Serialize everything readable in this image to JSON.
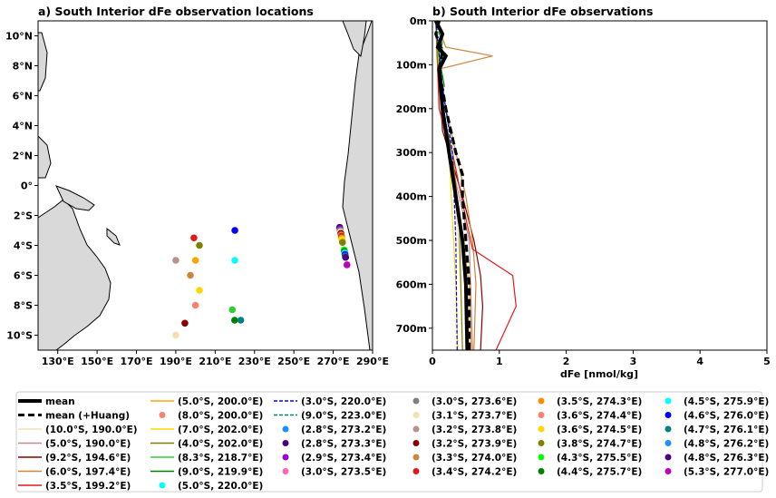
{
  "chart_data": [
    {
      "type": "scatter",
      "title": "a) South Interior dFe observation locations",
      "x_tick_labels": [
        "130°E",
        "150°E",
        "170°E",
        "190°E",
        "210°E",
        "230°E",
        "250°E",
        "270°E",
        "290°E"
      ],
      "x_tick_values": [
        130,
        150,
        170,
        190,
        210,
        230,
        250,
        270,
        290
      ],
      "y_tick_labels": [
        "10°N",
        "8°N",
        "6°N",
        "4°N",
        "2°N",
        "0°",
        "2°S",
        "4°S",
        "6°S",
        "8°S",
        "10°S"
      ],
      "y_tick_values": [
        10,
        8,
        6,
        4,
        2,
        0,
        -2,
        -4,
        -6,
        -8,
        -10
      ],
      "xlim": [
        120,
        290
      ],
      "ylim": [
        -11,
        11
      ],
      "points": [
        {
          "lon": 190.0,
          "lat": -10.0,
          "color": "#f5deb3"
        },
        {
          "lon": 190.0,
          "lat": -5.0,
          "color": "#bc8f8f"
        },
        {
          "lon": 194.6,
          "lat": -9.2,
          "color": "#8b0000"
        },
        {
          "lon": 197.4,
          "lat": -6.0,
          "color": "#cd853f"
        },
        {
          "lon": 199.2,
          "lat": -3.5,
          "color": "#e31a1c"
        },
        {
          "lon": 200.0,
          "lat": -5.0,
          "color": "#ffa500"
        },
        {
          "lon": 200.0,
          "lat": -8.0,
          "color": "#fa8072"
        },
        {
          "lon": 202.0,
          "lat": -7.0,
          "color": "#ffd700"
        },
        {
          "lon": 202.0,
          "lat": -4.0,
          "color": "#808000"
        },
        {
          "lon": 218.7,
          "lat": -8.3,
          "color": "#32cd32"
        },
        {
          "lon": 219.9,
          "lat": -9.0,
          "color": "#008000"
        },
        {
          "lon": 220.0,
          "lat": -5.0,
          "color": "#00ffff"
        },
        {
          "lon": 220.0,
          "lat": -3.0,
          "color": "#0000ff"
        },
        {
          "lon": 223.0,
          "lat": -9.0,
          "color": "#008080"
        },
        {
          "lon": 273.2,
          "lat": -2.8,
          "color": "#1e90ff"
        },
        {
          "lon": 273.3,
          "lat": -2.8,
          "color": "#4b0082"
        },
        {
          "lon": 273.4,
          "lat": -2.9,
          "color": "#9400d3"
        },
        {
          "lon": 273.5,
          "lat": -3.0,
          "color": "#ff69b4"
        },
        {
          "lon": 273.6,
          "lat": -3.0,
          "color": "#808080"
        },
        {
          "lon": 273.7,
          "lat": -3.1,
          "color": "#f5deb3"
        },
        {
          "lon": 273.8,
          "lat": -3.2,
          "color": "#bc8f8f"
        },
        {
          "lon": 273.9,
          "lat": -3.2,
          "color": "#8b0000"
        },
        {
          "lon": 274.0,
          "lat": -3.3,
          "color": "#cd853f"
        },
        {
          "lon": 274.2,
          "lat": -3.4,
          "color": "#e31a1c"
        },
        {
          "lon": 274.3,
          "lat": -3.5,
          "color": "#ff8c00"
        },
        {
          "lon": 274.4,
          "lat": -3.6,
          "color": "#fa8072"
        },
        {
          "lon": 274.5,
          "lat": -3.6,
          "color": "#ffd700"
        },
        {
          "lon": 274.7,
          "lat": -3.8,
          "color": "#808000"
        },
        {
          "lon": 275.5,
          "lat": -4.3,
          "color": "#00ff00"
        },
        {
          "lon": 275.7,
          "lat": -4.4,
          "color": "#008000"
        },
        {
          "lon": 275.9,
          "lat": -4.5,
          "color": "#00ffff"
        },
        {
          "lon": 276.0,
          "lat": -4.6,
          "color": "#0000ff"
        },
        {
          "lon": 276.1,
          "lat": -4.7,
          "color": "#008080"
        },
        {
          "lon": 276.2,
          "lat": -4.8,
          "color": "#1e90ff"
        },
        {
          "lon": 276.3,
          "lat": -4.8,
          "color": "#4b0082"
        },
        {
          "lon": 277.0,
          "lat": -5.3,
          "color": "#c000c0"
        }
      ]
    },
    {
      "type": "line",
      "title": "b) South Interior dFe observations",
      "xlabel": "dFe [nmol/kg]",
      "x_tick_labels": [
        "0",
        "1",
        "2",
        "3",
        "4",
        "5"
      ],
      "x_tick_values": [
        0,
        1,
        2,
        3,
        4,
        5
      ],
      "y_tick_labels": [
        "0m",
        "100m",
        "200m",
        "300m",
        "400m",
        "500m",
        "600m",
        "700m"
      ],
      "y_tick_values": [
        0,
        100,
        200,
        300,
        400,
        500,
        600,
        700
      ],
      "xlim": [
        0,
        5
      ],
      "ylim": [
        750,
        0
      ],
      "series": [
        {
          "color": "#f5deb3",
          "dash": "",
          "width": 1.2,
          "values": [
            [
              0.05,
              0
            ],
            [
              0.1,
              100
            ],
            [
              0.15,
              200
            ],
            [
              0.35,
              400
            ],
            [
              0.42,
              600
            ],
            [
              0.45,
              750
            ]
          ]
        },
        {
          "color": "#bc8f8f",
          "dash": "",
          "width": 1.2,
          "values": [
            [
              0.05,
              0
            ],
            [
              0.08,
              60
            ],
            [
              0.1,
              200
            ],
            [
              0.4,
              400
            ],
            [
              0.55,
              500
            ],
            [
              0.6,
              750
            ]
          ]
        },
        {
          "color": "#8b0000",
          "dash": "",
          "width": 1.2,
          "values": [
            [
              0.05,
              0
            ],
            [
              0.1,
              100
            ],
            [
              0.15,
              250
            ],
            [
              0.45,
              400
            ],
            [
              0.62,
              500
            ],
            [
              0.72,
              580
            ],
            [
              0.75,
              650
            ],
            [
              0.72,
              750
            ]
          ]
        },
        {
          "color": "#cd853f",
          "dash": "",
          "width": 1.2,
          "values": [
            [
              0.05,
              0
            ],
            [
              0.2,
              60
            ],
            [
              0.9,
              80
            ],
            [
              0.1,
              110
            ],
            [
              0.2,
              200
            ],
            [
              0.5,
              400
            ],
            [
              0.6,
              500
            ],
            [
              0.65,
              600
            ],
            [
              0.62,
              750
            ]
          ]
        },
        {
          "color": "#e31a1c",
          "dash": "",
          "width": 1.2,
          "values": [
            [
              0.05,
              0
            ],
            [
              0.08,
              120
            ],
            [
              0.1,
              200
            ],
            [
              0.3,
              300
            ],
            [
              0.5,
              450
            ],
            [
              0.6,
              520
            ],
            [
              1.2,
              580
            ],
            [
              1.25,
              650
            ],
            [
              0.95,
              750
            ]
          ]
        },
        {
          "color": "#ffa500",
          "dash": "",
          "width": 1.2,
          "values": [
            [
              0.05,
              0
            ],
            [
              0.1,
              120
            ],
            [
              0.2,
              250
            ],
            [
              0.35,
              400
            ],
            [
              0.45,
              500
            ],
            [
              0.55,
              600
            ],
            [
              0.58,
              750
            ]
          ]
        },
        {
          "color": "#ffd700",
          "dash": "",
          "width": 1.2,
          "values": [
            [
              0.05,
              0
            ],
            [
              0.1,
              120
            ],
            [
              0.15,
              200
            ],
            [
              0.25,
              300
            ],
            [
              0.3,
              450
            ],
            [
              0.35,
              600
            ],
            [
              0.38,
              750
            ]
          ]
        },
        {
          "color": "#808000",
          "dash": "",
          "width": 1.2,
          "values": [
            [
              0.05,
              0
            ],
            [
              0.08,
              100
            ],
            [
              0.15,
              200
            ],
            [
              0.3,
              300
            ],
            [
              0.4,
              450
            ],
            [
              0.45,
              750
            ]
          ]
        },
        {
          "color": "#32cd32",
          "dash": "",
          "width": 1.2,
          "values": [
            [
              0.05,
              0
            ],
            [
              0.1,
              20
            ],
            [
              0.15,
              50
            ],
            [
              0.1,
              80
            ],
            [
              0.15,
              150
            ]
          ]
        },
        {
          "color": "#008000",
          "dash": "",
          "width": 1.2,
          "values": [
            [
              0.05,
              0
            ],
            [
              0.08,
              50
            ],
            [
              0.12,
              100
            ],
            [
              0.18,
              150
            ]
          ]
        },
        {
          "color": "#0000ff",
          "dash": "4,2",
          "width": 1.2,
          "values": [
            [
              0.05,
              0
            ],
            [
              0.1,
              80
            ],
            [
              0.15,
              150
            ],
            [
              0.3,
              300
            ],
            [
              0.35,
              500
            ],
            [
              0.37,
              750
            ]
          ]
        },
        {
          "color": "#008080",
          "dash": "4,2",
          "width": 1.2,
          "values": [
            [
              0.05,
              0
            ],
            [
              0.1,
              30
            ],
            [
              0.15,
              60
            ],
            [
              0.12,
              100
            ]
          ]
        },
        {
          "color": "#000000",
          "dash": "8,4",
          "width": 3.2,
          "values": [
            [
              0.1,
              0
            ],
            [
              0.05,
              30
            ],
            [
              0.15,
              70
            ],
            [
              0.1,
              110
            ],
            [
              0.2,
              200
            ],
            [
              0.35,
              300
            ],
            [
              0.45,
              350
            ],
            [
              0.45,
              400
            ],
            [
              0.5,
              500
            ],
            [
              0.55,
              600
            ],
            [
              0.55,
              750
            ]
          ]
        },
        {
          "color": "#000000",
          "dash": "",
          "width": 4,
          "values": [
            [
              0.05,
              0
            ],
            [
              0.15,
              30
            ],
            [
              0.08,
              60
            ],
            [
              0.2,
              80
            ],
            [
              0.1,
              110
            ],
            [
              0.15,
              200
            ],
            [
              0.25,
              300
            ],
            [
              0.35,
              400
            ],
            [
              0.45,
              500
            ],
            [
              0.5,
              600
            ],
            [
              0.52,
              750
            ]
          ]
        }
      ]
    }
  ],
  "legend": {
    "columns": [
      [
        {
          "label": "mean",
          "kind": "line",
          "color": "#000000",
          "dash": "",
          "width": 4
        },
        {
          "label": "mean (+Huang)",
          "kind": "line",
          "color": "#000000",
          "dash": "7,4",
          "width": 3
        },
        {
          "label": "(10.0°S, 190.0°E)",
          "kind": "line",
          "color": "#f5deb3",
          "dash": "",
          "width": 1.5
        },
        {
          "label": "(5.0°S, 190.0°E)",
          "kind": "line",
          "color": "#bc8f8f",
          "dash": "",
          "width": 1.5
        },
        {
          "label": "(9.2°S, 194.6°E)",
          "kind": "line",
          "color": "#8b0000",
          "dash": "",
          "width": 1.5
        },
        {
          "label": "(6.0°S, 197.4°E)",
          "kind": "line",
          "color": "#cd853f",
          "dash": "",
          "width": 1.5
        },
        {
          "label": "(3.5°S, 199.2°E)",
          "kind": "line",
          "color": "#e31a1c",
          "dash": "",
          "width": 1.5
        }
      ],
      [
        {
          "label": "(5.0°S, 200.0°E)",
          "kind": "line",
          "color": "#ffa500",
          "dash": "",
          "width": 1.5
        },
        {
          "label": "(8.0°S, 200.0°E)",
          "kind": "dot",
          "color": "#fa8072"
        },
        {
          "label": "(7.0°S, 202.0°E)",
          "kind": "line",
          "color": "#ffd700",
          "dash": "",
          "width": 1.5
        },
        {
          "label": "(4.0°S, 202.0°E)",
          "kind": "line",
          "color": "#808000",
          "dash": "",
          "width": 1.5
        },
        {
          "label": "(8.3°S, 218.7°E)",
          "kind": "line",
          "color": "#32cd32",
          "dash": "",
          "width": 1.5
        },
        {
          "label": "(9.0°S, 219.9°E)",
          "kind": "line",
          "color": "#008000",
          "dash": "",
          "width": 1.5
        },
        {
          "label": "(5.0°S, 220.0°E)",
          "kind": "dot",
          "color": "#00ffff"
        }
      ],
      [
        {
          "label": "(3.0°S, 220.0°E)",
          "kind": "line",
          "color": "#0000ff",
          "dash": "4,2",
          "width": 1.5
        },
        {
          "label": "(9.0°S, 223.0°E)",
          "kind": "line",
          "color": "#008080",
          "dash": "4,2",
          "width": 1.5
        },
        {
          "label": "(2.8°S, 273.2°E)",
          "kind": "dot",
          "color": "#1e90ff"
        },
        {
          "label": "(2.8°S, 273.3°E)",
          "kind": "dot",
          "color": "#4b0082"
        },
        {
          "label": "(2.9°S, 273.4°E)",
          "kind": "dot",
          "color": "#9400d3"
        },
        {
          "label": "(3.0°S, 273.5°E)",
          "kind": "dot",
          "color": "#ff69b4"
        }
      ],
      [
        {
          "label": "(3.0°S, 273.6°E)",
          "kind": "dot",
          "color": "#808080"
        },
        {
          "label": "(3.1°S, 273.7°E)",
          "kind": "dot",
          "color": "#f5deb3"
        },
        {
          "label": "(3.2°S, 273.8°E)",
          "kind": "dot",
          "color": "#bc8f8f"
        },
        {
          "label": "(3.2°S, 273.9°E)",
          "kind": "dot",
          "color": "#8b0000"
        },
        {
          "label": "(3.3°S, 274.0°E)",
          "kind": "dot",
          "color": "#cd853f"
        },
        {
          "label": "(3.4°S, 274.2°E)",
          "kind": "dot",
          "color": "#e31a1c"
        }
      ],
      [
        {
          "label": "(3.5°S, 274.3°E)",
          "kind": "dot",
          "color": "#ff8c00"
        },
        {
          "label": "(3.6°S, 274.4°E)",
          "kind": "dot",
          "color": "#fa8072"
        },
        {
          "label": "(3.6°S, 274.5°E)",
          "kind": "dot",
          "color": "#ffd700"
        },
        {
          "label": "(3.8°S, 274.7°E)",
          "kind": "dot",
          "color": "#808000"
        },
        {
          "label": "(4.3°S, 275.5°E)",
          "kind": "dot",
          "color": "#00ff00"
        },
        {
          "label": "(4.4°S, 275.7°E)",
          "kind": "dot",
          "color": "#008000"
        }
      ],
      [
        {
          "label": "(4.5°S, 275.9°E)",
          "kind": "dot",
          "color": "#00ffff"
        },
        {
          "label": "(4.6°S, 276.0°E)",
          "kind": "dot",
          "color": "#0000ff"
        },
        {
          "label": "(4.7°S, 276.1°E)",
          "kind": "dot",
          "color": "#008080"
        },
        {
          "label": "(4.8°S, 276.2°E)",
          "kind": "dot",
          "color": "#1e90ff"
        },
        {
          "label": "(4.8°S, 276.3°E)",
          "kind": "dot",
          "color": "#4b0082"
        },
        {
          "label": "(5.3°S, 277.0°E)",
          "kind": "dot",
          "color": "#c000c0"
        }
      ]
    ]
  }
}
